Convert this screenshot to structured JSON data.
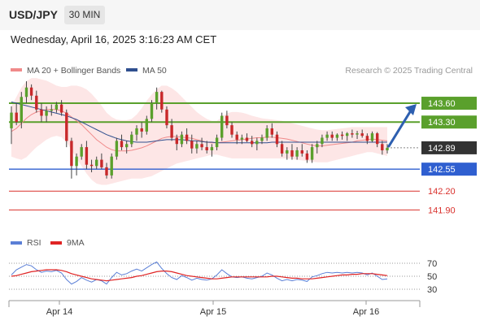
{
  "header": {
    "symbol": "USD/JPY",
    "timeframe": "30 MIN",
    "datetime": "Wednesday, April 16, 2025 3:16:23 AM CET"
  },
  "legend": {
    "ma20_label": "MA 20 + Bollinger Bands",
    "ma20_color": "#f08a8a",
    "ma50_label": "MA 50",
    "ma50_color": "#2f4f8f",
    "credit": "Research © 2025 Trading Central"
  },
  "levels": {
    "resistance": [
      {
        "label": "143.60",
        "value": 143.6,
        "color": "#5aa02c"
      },
      {
        "label": "143.30",
        "value": 143.3,
        "color": "#5aa02c"
      }
    ],
    "current": {
      "label": "142.89",
      "value": 142.89,
      "color": "#333333"
    },
    "pivot": {
      "label": "142.55",
      "value": 142.55,
      "color": "#2f5fd0"
    },
    "support": [
      {
        "label": "142.20",
        "value": 142.2,
        "color": "#d9302c"
      },
      {
        "label": "141.90",
        "value": 141.9,
        "color": "#d9302c"
      }
    ]
  },
  "rsi": {
    "label": "RSI",
    "color": "#5b7fd6",
    "ma_label": "9MA",
    "ma_color": "#e02424",
    "ticks": [
      "70",
      "50",
      "30"
    ]
  },
  "xaxis": {
    "labels": [
      "Apr 14",
      "Apr 15",
      "Apr 16"
    ]
  },
  "chart_data": {
    "type": "candlestick",
    "ylim": [
      141.75,
      143.95
    ],
    "candles": [
      [
        143.2,
        143.55,
        142.95,
        143.45
      ],
      [
        143.45,
        143.6,
        143.25,
        143.3
      ],
      [
        143.3,
        143.78,
        143.2,
        143.7
      ],
      [
        143.7,
        143.95,
        143.6,
        143.85
      ],
      [
        143.85,
        143.9,
        143.65,
        143.72
      ],
      [
        143.72,
        143.8,
        143.45,
        143.5
      ],
      [
        143.5,
        143.6,
        143.3,
        143.4
      ],
      [
        143.4,
        143.55,
        143.3,
        143.48
      ],
      [
        143.48,
        143.58,
        143.4,
        143.5
      ],
      [
        143.5,
        143.62,
        143.45,
        143.58
      ],
      [
        143.58,
        143.65,
        143.4,
        143.45
      ],
      [
        143.45,
        143.5,
        142.9,
        143.0
      ],
      [
        143.0,
        143.05,
        142.4,
        142.6
      ],
      [
        142.6,
        142.8,
        142.45,
        142.75
      ],
      [
        142.75,
        142.95,
        142.7,
        142.9
      ],
      [
        142.9,
        143.0,
        142.55,
        142.62
      ],
      [
        142.62,
        142.7,
        142.5,
        142.6
      ],
      [
        142.6,
        142.75,
        142.55,
        142.7
      ],
      [
        142.7,
        142.8,
        142.55,
        142.58
      ],
      [
        142.58,
        142.65,
        142.4,
        142.45
      ],
      [
        142.45,
        142.8,
        142.4,
        142.75
      ],
      [
        142.75,
        143.05,
        142.7,
        143.0
      ],
      [
        143.0,
        143.1,
        142.85,
        142.9
      ],
      [
        142.9,
        143.0,
        142.8,
        142.95
      ],
      [
        142.95,
        143.15,
        142.9,
        143.1
      ],
      [
        143.1,
        143.25,
        143.0,
        143.2
      ],
      [
        143.2,
        143.3,
        143.05,
        143.15
      ],
      [
        143.15,
        143.4,
        143.1,
        143.35
      ],
      [
        143.35,
        143.65,
        143.3,
        143.6
      ],
      [
        143.6,
        143.85,
        143.5,
        143.78
      ],
      [
        143.78,
        143.8,
        143.45,
        143.5
      ],
      [
        143.5,
        143.55,
        143.2,
        143.25
      ],
      [
        143.25,
        143.35,
        143.0,
        143.05
      ],
      [
        143.05,
        143.1,
        142.85,
        142.95
      ],
      [
        142.95,
        143.15,
        142.9,
        143.1
      ],
      [
        143.1,
        143.2,
        142.95,
        143.0
      ],
      [
        143.0,
        143.1,
        142.8,
        142.88
      ],
      [
        142.88,
        143.0,
        142.8,
        142.95
      ],
      [
        142.95,
        143.05,
        142.85,
        142.9
      ],
      [
        142.9,
        143.0,
        142.8,
        142.85
      ],
      [
        142.85,
        142.95,
        142.75,
        142.9
      ],
      [
        142.9,
        143.1,
        142.85,
        143.05
      ],
      [
        143.05,
        143.45,
        143.0,
        143.4
      ],
      [
        143.4,
        143.48,
        143.2,
        143.25
      ],
      [
        143.25,
        143.3,
        143.05,
        143.1
      ],
      [
        143.1,
        143.15,
        142.95,
        143.02
      ],
      [
        143.02,
        143.1,
        142.95,
        143.05
      ],
      [
        143.05,
        143.12,
        142.98,
        143.0
      ],
      [
        143.0,
        143.08,
        142.9,
        142.95
      ],
      [
        142.95,
        143.05,
        142.85,
        143.0
      ],
      [
        143.0,
        143.1,
        142.95,
        143.05
      ],
      [
        143.05,
        143.25,
        143.0,
        143.2
      ],
      [
        143.2,
        143.28,
        143.05,
        143.1
      ],
      [
        143.1,
        143.15,
        142.9,
        142.95
      ],
      [
        142.95,
        143.0,
        142.75,
        142.8
      ],
      [
        142.8,
        142.9,
        142.7,
        142.85
      ],
      [
        142.85,
        142.95,
        142.7,
        142.75
      ],
      [
        142.75,
        142.9,
        142.7,
        142.85
      ],
      [
        142.85,
        142.95,
        142.75,
        142.8
      ],
      [
        142.8,
        142.85,
        142.65,
        142.7
      ],
      [
        142.7,
        142.95,
        142.65,
        142.9
      ],
      [
        142.9,
        143.0,
        142.8,
        142.95
      ],
      [
        142.95,
        143.1,
        142.9,
        143.05
      ],
      [
        143.05,
        143.15,
        143.0,
        143.1
      ],
      [
        143.1,
        143.15,
        143.0,
        143.05
      ],
      [
        143.05,
        143.12,
        143.0,
        143.1
      ],
      [
        143.1,
        143.15,
        143.02,
        143.08
      ],
      [
        143.08,
        143.14,
        143.0,
        143.12
      ],
      [
        143.12,
        143.18,
        143.05,
        143.1
      ],
      [
        143.1,
        143.16,
        143.03,
        143.12
      ],
      [
        143.12,
        143.18,
        143.05,
        143.08
      ],
      [
        143.08,
        143.12,
        142.95,
        143.0
      ],
      [
        143.0,
        143.15,
        142.98,
        143.12
      ],
      [
        143.12,
        143.14,
        142.9,
        142.95
      ],
      [
        142.95,
        143.0,
        142.78,
        142.85
      ],
      [
        142.85,
        142.95,
        142.8,
        142.89
      ]
    ],
    "ma20": [
      143.15,
      143.2,
      143.28,
      143.36,
      143.42,
      143.46,
      143.48,
      143.5,
      143.5,
      143.5,
      143.48,
      143.44,
      143.38,
      143.32,
      143.26,
      143.18,
      143.1,
      143.02,
      142.96,
      142.9,
      142.86,
      142.84,
      142.84,
      142.84,
      142.85,
      142.87,
      142.89,
      142.92,
      142.96,
      143.0,
      143.04,
      143.06,
      143.07,
      143.07,
      143.06,
      143.05,
      143.04,
      143.02,
      143.0,
      142.98,
      142.97,
      142.97,
      142.98,
      142.99,
      143.0,
      143.01,
      143.02,
      143.03,
      143.04,
      143.05,
      143.05,
      143.06,
      143.06,
      143.05,
      143.04,
      143.03,
      143.01,
      142.99,
      142.97,
      142.95,
      142.93,
      142.92,
      142.92,
      142.93,
      142.94,
      142.95,
      142.96,
      142.97,
      142.98,
      143.0,
      143.01,
      143.02,
      143.03,
      143.02,
      143.01,
      143.0
    ],
    "bb_upper": [
      143.55,
      143.7,
      143.85,
      143.95,
      144.0,
      144.0,
      143.98,
      143.96,
      143.92,
      143.88,
      143.86,
      143.86,
      143.88,
      143.88,
      143.86,
      143.82,
      143.75,
      143.66,
      143.56,
      143.45,
      143.38,
      143.34,
      143.33,
      143.33,
      143.35,
      143.42,
      143.52,
      143.64,
      143.74,
      143.82,
      143.88,
      143.88,
      143.84,
      143.78,
      143.7,
      143.62,
      143.54,
      143.46,
      143.4,
      143.35,
      143.32,
      143.32,
      143.38,
      143.44,
      143.46,
      143.46,
      143.45,
      143.43,
      143.4,
      143.38,
      143.36,
      143.35,
      143.34,
      143.33,
      143.32,
      143.3,
      143.28,
      143.26,
      143.24,
      143.22,
      143.2,
      143.18,
      143.17,
      143.17,
      143.18,
      143.19,
      143.2,
      143.21,
      143.22,
      143.22,
      143.22,
      143.22,
      143.22,
      143.22,
      143.22,
      143.22
    ],
    "bb_lower": [
      142.75,
      142.72,
      142.7,
      142.74,
      142.82,
      142.9,
      142.96,
      143.02,
      143.06,
      143.08,
      143.06,
      142.98,
      142.86,
      142.72,
      142.6,
      142.48,
      142.38,
      142.32,
      142.3,
      142.3,
      142.32,
      142.34,
      142.36,
      142.38,
      142.4,
      142.4,
      142.4,
      142.42,
      142.44,
      142.48,
      142.52,
      142.56,
      142.6,
      142.64,
      142.66,
      142.68,
      142.7,
      142.72,
      142.74,
      142.76,
      142.78,
      142.78,
      142.76,
      142.74,
      142.72,
      142.72,
      142.72,
      142.72,
      142.72,
      142.72,
      142.72,
      142.72,
      142.72,
      142.72,
      142.72,
      142.72,
      142.71,
      142.7,
      142.69,
      142.68,
      142.67,
      142.66,
      142.66,
      142.66,
      142.68,
      142.7,
      142.72,
      142.74,
      142.76,
      142.78,
      142.8,
      142.82,
      142.82,
      142.8,
      142.78,
      142.76
    ],
    "ma50": [
      143.62,
      143.6,
      143.58,
      143.56,
      143.54,
      143.52,
      143.5,
      143.48,
      143.46,
      143.44,
      143.42,
      143.4,
      143.37,
      143.34,
      143.3,
      143.26,
      143.22,
      143.18,
      143.14,
      143.1,
      143.07,
      143.04,
      143.02,
      143.0,
      142.99,
      142.98,
      142.98,
      142.98,
      142.99,
      143.0,
      143.01,
      143.02,
      143.02,
      143.02,
      143.02,
      143.01,
      143.0,
      143.0,
      142.99,
      142.98,
      142.98,
      142.97,
      142.97,
      142.97,
      142.97,
      142.97,
      142.97,
      142.97,
      142.97,
      142.97,
      142.97,
      142.97,
      142.98,
      142.98,
      142.98,
      142.98,
      142.98,
      142.98,
      142.98,
      142.98,
      142.98,
      142.98,
      142.98,
      142.98,
      142.98,
      142.98,
      142.98,
      142.98,
      142.98,
      142.98,
      142.98,
      142.98,
      142.98,
      142.98,
      142.98,
      142.98
    ],
    "rsi_ylim": [
      20,
      80
    ],
    "rsi": [
      52,
      60,
      64,
      68,
      66,
      60,
      56,
      58,
      57,
      59,
      55,
      45,
      38,
      42,
      48,
      44,
      41,
      45,
      43,
      38,
      48,
      56,
      52,
      54,
      58,
      61,
      58,
      63,
      68,
      72,
      62,
      54,
      48,
      45,
      51,
      48,
      44,
      47,
      45,
      44,
      46,
      52,
      60,
      54,
      49,
      48,
      49,
      47,
      46,
      48,
      50,
      55,
      52,
      47,
      43,
      45,
      43,
      45,
      44,
      42,
      49,
      51,
      54,
      56,
      55,
      56,
      55,
      56,
      55,
      56,
      55,
      52,
      55,
      50,
      45,
      46
    ],
    "rsi_ma": [
      50,
      51,
      53,
      55,
      57,
      58,
      59,
      60,
      60,
      60,
      59,
      57,
      54,
      52,
      50,
      48,
      46,
      45,
      44,
      43,
      44,
      45,
      46,
      47,
      48,
      50,
      51,
      53,
      55,
      57,
      58,
      58,
      57,
      55,
      53,
      51,
      50,
      49,
      48,
      47,
      46,
      46,
      47,
      48,
      49,
      49,
      49,
      49,
      49,
      49,
      49,
      49,
      50,
      50,
      49,
      48,
      47,
      47,
      46,
      46,
      46,
      47,
      48,
      49,
      50,
      51,
      52,
      52,
      53,
      53,
      54,
      54,
      54,
      53,
      52,
      51
    ]
  }
}
